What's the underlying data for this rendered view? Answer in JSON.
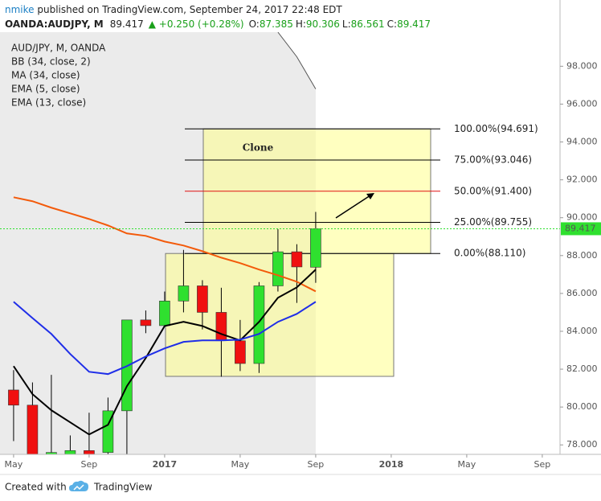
{
  "header": {
    "author": "nmike",
    "published": " published on TradingView.com, September 24, 2017 22:48 EDT",
    "symbol": "OANDA:AUDJPY, M",
    "last": "89.417",
    "change": "▲ +0.250 (+0.28%)",
    "ohlc": [
      {
        "label": "O:",
        "value": "87.385"
      },
      {
        "label": "H:",
        "value": "90.306"
      },
      {
        "label": "L:",
        "value": "86.561"
      },
      {
        "label": "C:",
        "value": "89.417"
      }
    ]
  },
  "chart_data": {
    "type": "candlestick",
    "title": "AUD/JPY, M, OANDA",
    "x": [
      0,
      1,
      2,
      3,
      4,
      5,
      6,
      7,
      8,
      9,
      10,
      11,
      12,
      13,
      14,
      15,
      16
    ],
    "open": [
      80.9,
      80.1,
      77.3,
      77.5,
      77.7,
      77.6,
      79.8,
      84.6,
      84.3,
      85.6,
      86.4,
      85.0,
      83.5,
      82.3,
      86.4,
      88.2,
      87.385
    ],
    "high": [
      81.95,
      81.3,
      81.7,
      78.5,
      79.7,
      80.5,
      84.6,
      85.1,
      86.1,
      88.3,
      86.7,
      86.3,
      84.6,
      86.6,
      89.4,
      88.6,
      90.306
    ],
    "low": [
      78.2,
      77.0,
      76.8,
      77.3,
      77.3,
      77.0,
      77.3,
      83.9,
      84.3,
      85.0,
      84.1,
      81.6,
      81.9,
      81.8,
      86.1,
      85.5,
      86.561
    ],
    "close": [
      80.1,
      77.4,
      77.6,
      77.7,
      77.5,
      79.8,
      84.6,
      84.3,
      85.6,
      86.4,
      85.0,
      83.5,
      82.3,
      86.4,
      88.2,
      87.4,
      89.417
    ],
    "up_color": "#2fe02f",
    "down_color": "#f01010",
    "series": [
      {
        "name": "BB (34, close, 2)",
        "color": "#555555",
        "values": [
          null,
          null,
          null,
          null,
          null,
          null,
          null,
          null,
          null,
          null,
          null,
          null,
          null,
          null,
          99.8,
          98.5,
          96.8
        ]
      },
      {
        "name": "MA (34, close)",
        "color": "#f35a0a",
        "values": [
          91.08,
          90.87,
          90.53,
          90.23,
          89.93,
          89.59,
          89.17,
          89.04,
          88.74,
          88.53,
          88.23,
          87.89,
          87.6,
          87.26,
          86.96,
          86.62,
          86.11
        ]
      },
      {
        "name": "EMA (5, close)",
        "color": "#000000",
        "values": [
          82.16,
          80.68,
          79.83,
          79.19,
          78.55,
          79.06,
          81.1,
          82.59,
          84.28,
          84.5,
          84.28,
          83.86,
          83.52,
          84.5,
          85.77,
          86.32,
          87.26
        ]
      },
      {
        "name": "EMA (13, close)",
        "color": "#1f2ee8",
        "values": [
          85.56,
          84.7,
          83.86,
          82.8,
          81.86,
          81.74,
          82.16,
          82.67,
          83.1,
          83.44,
          83.52,
          83.52,
          83.56,
          83.86,
          84.5,
          84.92,
          85.56
        ]
      }
    ],
    "xlim": [
      -0.72,
      28.94
    ],
    "xticks": [
      {
        "value": 0,
        "label": "May"
      },
      {
        "value": 4,
        "label": "Sep"
      },
      {
        "value": 8,
        "label": "2017"
      },
      {
        "value": 12,
        "label": "May"
      },
      {
        "value": 16,
        "label": "Sep"
      },
      {
        "value": 20,
        "label": "2018"
      },
      {
        "value": 24,
        "label": "May"
      },
      {
        "value": 28,
        "label": "Sep"
      }
    ],
    "ylim": [
      77.5,
      99.8
    ],
    "yticks": [
      {
        "value": 78,
        "label": "78.000"
      },
      {
        "value": 80,
        "label": "80.000"
      },
      {
        "value": 82,
        "label": "82.000"
      },
      {
        "value": 84,
        "label": "84.000"
      },
      {
        "value": 86,
        "label": "86.000"
      },
      {
        "value": 88,
        "label": "88.000"
      },
      {
        "value": 90,
        "label": "90.000"
      },
      {
        "value": 92,
        "label": "92.000"
      },
      {
        "value": 94,
        "label": "94.000"
      },
      {
        "value": 96,
        "label": "96.000"
      },
      {
        "value": 98,
        "label": "98.000"
      }
    ],
    "last_price": 89.417,
    "last_color": "#2fe02f",
    "fib_levels": [
      {
        "value": 94.691,
        "label": "100.00%(94.691)",
        "color": "#000000"
      },
      {
        "value": 93.046,
        "label": "75.00%(93.046)",
        "color": "#000000"
      },
      {
        "value": 91.4,
        "label": "50.00%(91.400)",
        "color": "#e01010"
      },
      {
        "value": 89.755,
        "label": "25.00%(89.755)",
        "color": "#000000"
      },
      {
        "value": 88.11,
        "label": "0.00%(88.110)",
        "color": "#000000"
      }
    ],
    "annotation": "Clone"
  },
  "footer": {
    "created": "Created with",
    "brand": "TradingView"
  }
}
